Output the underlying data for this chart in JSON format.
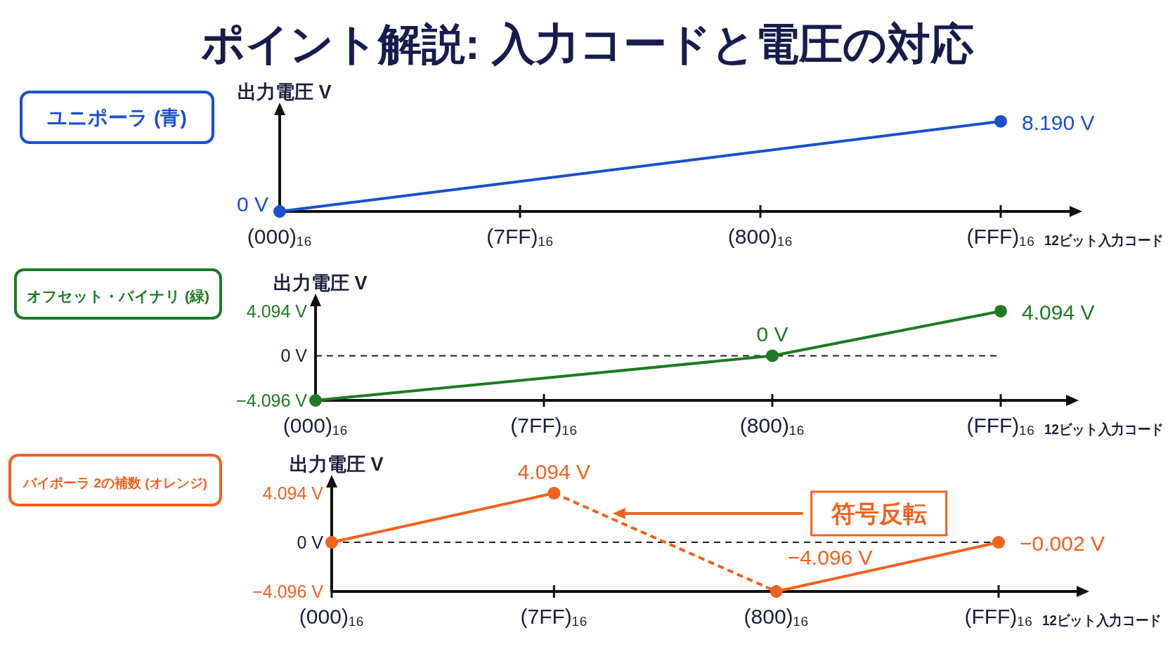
{
  "chart_data": [
    {
      "type": "line",
      "title": "ポイント解説: 入力コードと電圧の対応",
      "ylabel": "出力電圧 V",
      "xlabel": "12ビット入力コード",
      "categories": [
        "(000)₁₆",
        "(7FF)₁₆",
        "(800)₁₆",
        "(FFF)₁₆"
      ],
      "ylim": [
        0,
        9
      ],
      "grid": false,
      "legend": "left",
      "marker": "circle",
      "series": [
        {
          "name": "ユニポーラ (青)",
          "color": "#1a4fd0",
          "x": [
            "(000)₁₆",
            "(FFF)₁₆"
          ],
          "values": [
            0,
            8.19
          ],
          "value_labels": [
            "0 V",
            "8.190 V"
          ]
        }
      ]
    },
    {
      "type": "line",
      "ylabel": "出力電圧 V",
      "xlabel": "12ビット入力コード",
      "categories": [
        "(000)₁₆",
        "(7FF)₁₆",
        "(800)₁₆",
        "(FFF)₁₆"
      ],
      "ylim": [
        -4.096,
        4.8
      ],
      "yticks": [
        {
          "value": 4.094,
          "label": "4.094 V"
        },
        {
          "value": 0,
          "label": "0 V"
        },
        {
          "value": -4.096,
          "label": "−4.096 V"
        }
      ],
      "grid": false,
      "legend": "left",
      "marker": "circle",
      "ref_lines": [
        {
          "axis": "y",
          "value": 0,
          "line_style": "dashed"
        }
      ],
      "series": [
        {
          "name": "オフセット・バイナリ (緑)",
          "color": "#1e7a24",
          "x": [
            "(000)₁₆",
            "(800)₁₆",
            "(FFF)₁₆"
          ],
          "values": [
            -4.096,
            0,
            4.094
          ],
          "value_labels": [
            null,
            "0 V",
            "4.094 V"
          ]
        }
      ]
    },
    {
      "type": "line",
      "ylabel": "出力電圧 V",
      "xlabel": "12ビット入力コード",
      "categories": [
        "(000)₁₆",
        "(7FF)₁₆",
        "(800)₁₆",
        "(FFF)₁₆"
      ],
      "ylim": [
        -4.096,
        4.8
      ],
      "yticks": [
        {
          "value": 4.094,
          "label": "4.094 V"
        },
        {
          "value": 0,
          "label": "0 V"
        },
        {
          "value": -4.096,
          "label": "−4.096 V"
        }
      ],
      "grid": false,
      "legend": "left",
      "marker": "circle",
      "ref_lines": [
        {
          "axis": "y",
          "value": 0,
          "line_style": "dashed"
        }
      ],
      "annotations": [
        "符号反転"
      ],
      "series": [
        {
          "name": "バイポーラ 2の補数 (オレンジ)",
          "color": "#f0621e",
          "x": [
            "(000)₁₆",
            "(7FF)₁₆"
          ],
          "values": [
            0,
            4.094
          ],
          "value_labels": [
            null,
            "4.094 V"
          ]
        },
        {
          "color": "#f0621e",
          "x": [
            "(800)₁₆",
            "(FFF)₁₆"
          ],
          "values": [
            -4.096,
            -0.002
          ],
          "value_labels": [
            "−4.096 V",
            "−0.002 V"
          ]
        }
      ]
    }
  ]
}
